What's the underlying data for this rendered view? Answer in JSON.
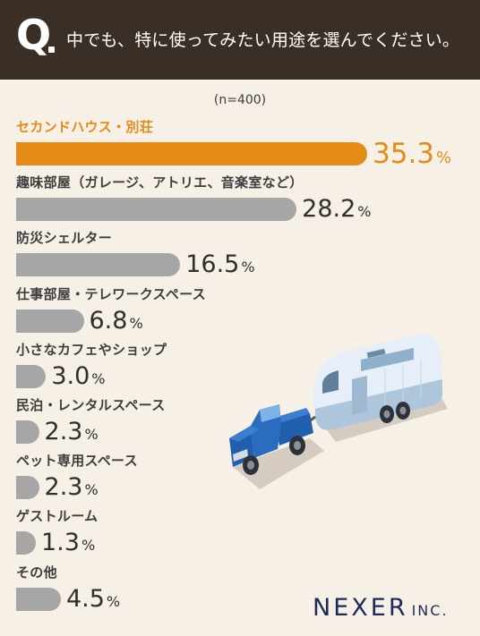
{
  "question": {
    "mark": "Q",
    "text": "中でも、特に使ってみたい用途を選んでください。"
  },
  "sample_size": "(n=400)",
  "brand": {
    "name": "NEXER",
    "suffix": "INC."
  },
  "colors": {
    "header_bg": "#3a2f27",
    "page_bg": "#f6f0e6",
    "highlight": "#e48c17",
    "bar": "#a6a6a6",
    "brand": "#1e2b5a"
  },
  "illustration": {
    "icon": "pickup-truck-towing-camper-trailer-icon"
  },
  "chart_data": {
    "type": "bar",
    "orientation": "horizontal",
    "unit": "%",
    "categories": [
      "セカンドハウス・別荘",
      "趣味部屋（ガレージ、アトリエ、音楽室など）",
      "防災シェルター",
      "仕事部屋・テレワークスペース",
      "小さなカフェやショップ",
      "民泊・レンタルスペース",
      "ペット専用スペース",
      "ゲストルーム",
      "その他"
    ],
    "values": [
      35.3,
      28.2,
      16.5,
      6.8,
      3.0,
      2.3,
      2.3,
      1.3,
      4.5
    ],
    "value_labels": [
      "35.3",
      "28.2",
      "16.5",
      "6.8",
      "3.0",
      "2.3",
      "2.3",
      "1.3",
      "4.5"
    ],
    "highlight_index": 0,
    "xlim": [
      0,
      35.3
    ]
  }
}
